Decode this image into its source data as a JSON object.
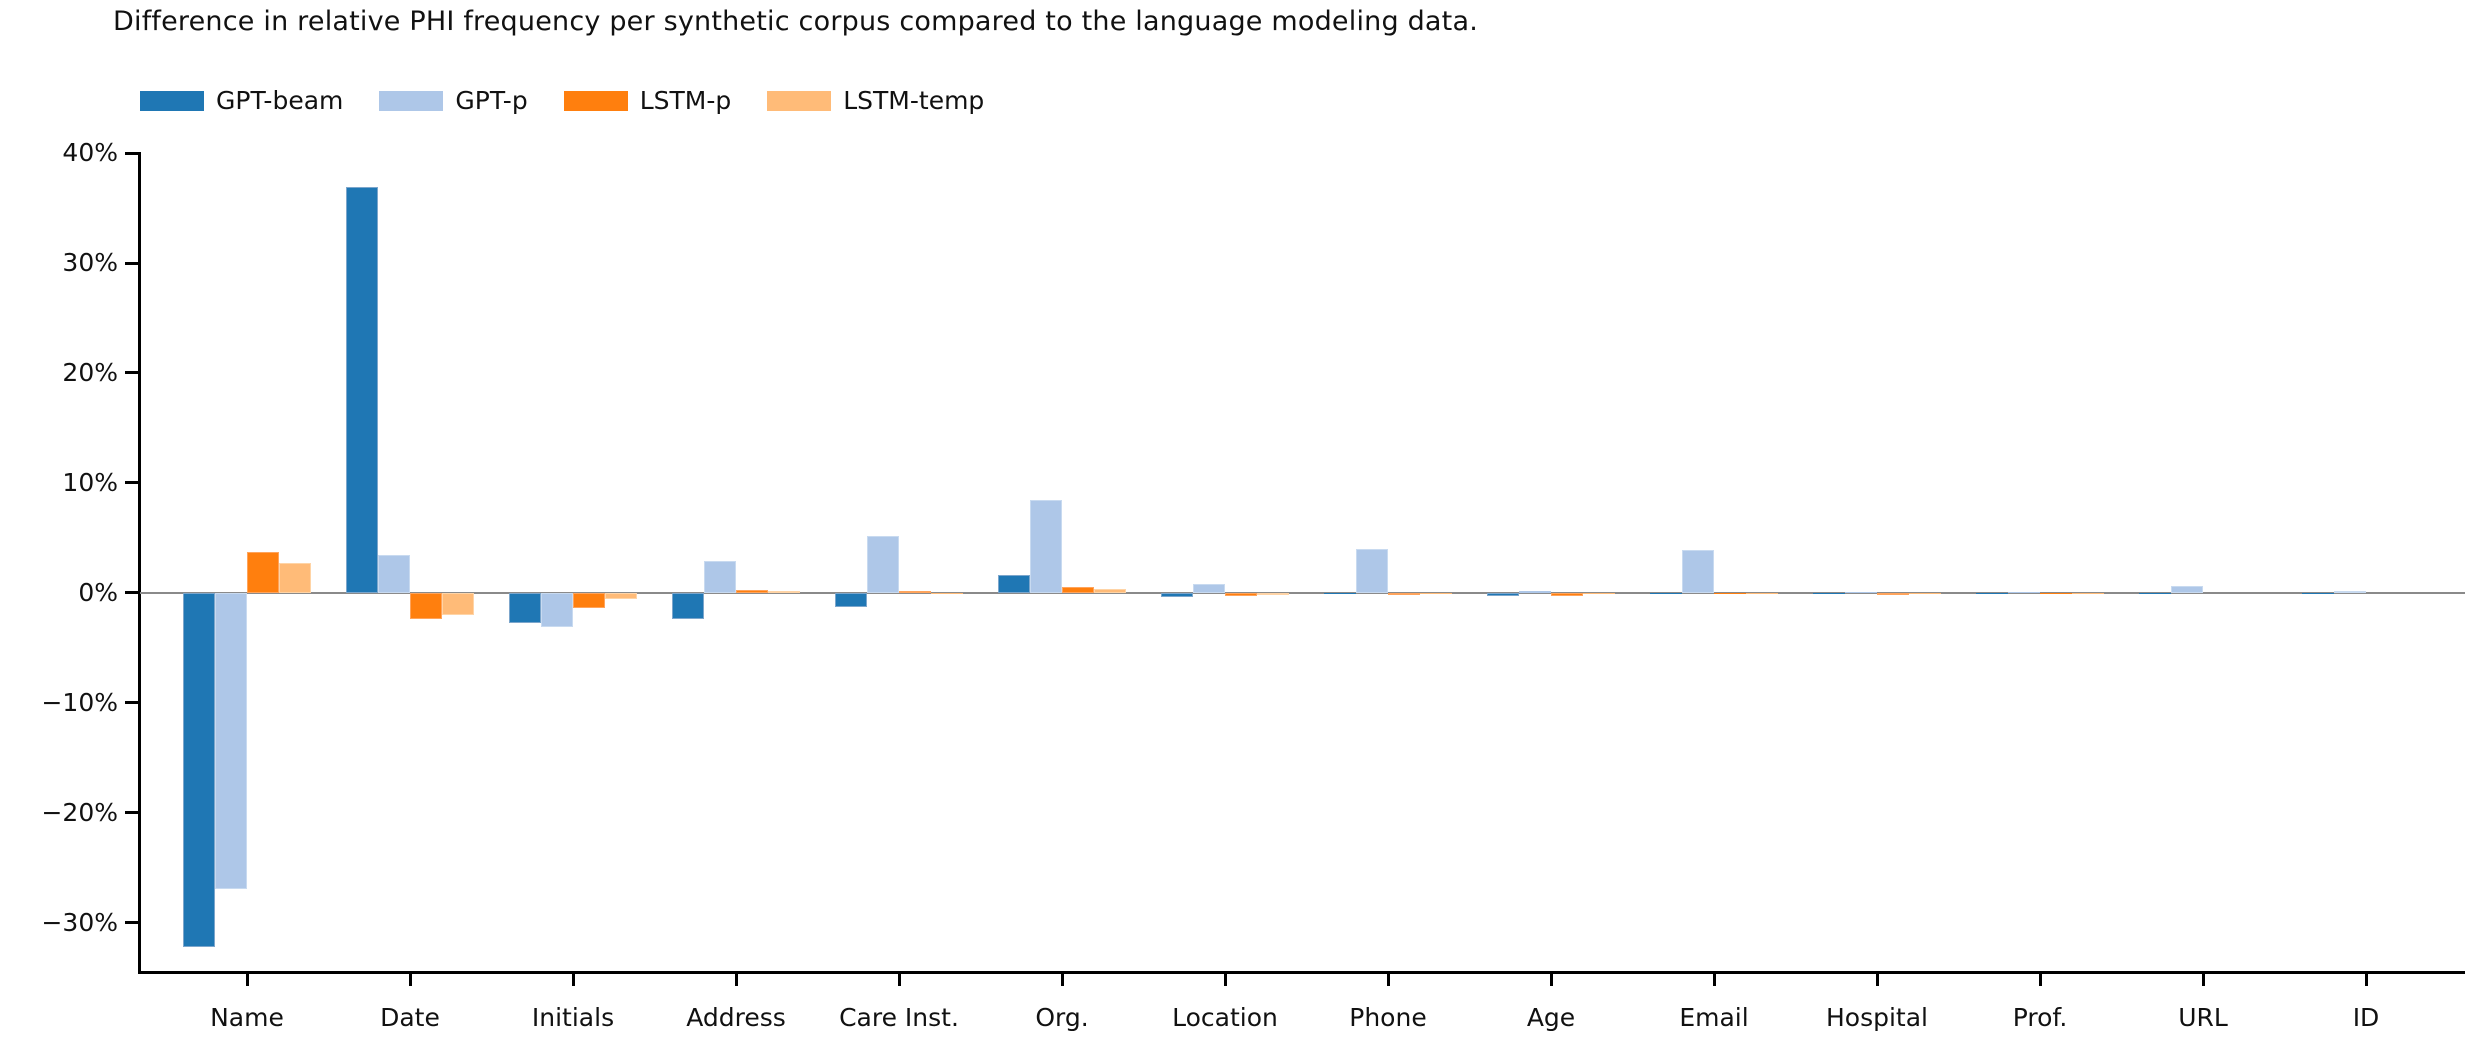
{
  "chart_data": {
    "type": "bar",
    "title": "Difference in relative PHI frequency per synthetic corpus compared to the language modeling data.",
    "categories": [
      "Name",
      "Date",
      "Initials",
      "Address",
      "Care Inst.",
      "Org.",
      "Location",
      "Phone",
      "Age",
      "Email",
      "Hospital",
      "Prof.",
      "URL",
      "ID"
    ],
    "series": [
      {
        "name": "GPT-beam",
        "color": "#1f77b4",
        "edge_color": "#7ca6cc",
        "values": [
          -32.2,
          36.9,
          -2.7,
          -2.4,
          -1.3,
          1.6,
          -0.4,
          -0.1,
          -0.3,
          -0.1,
          -0.1,
          -0.05,
          -0.05,
          -0.05
        ]
      },
      {
        "name": "GPT-p",
        "color": "#aec7e8",
        "edge_color": "#c8daf0",
        "values": [
          -26.9,
          3.4,
          -3.1,
          2.9,
          5.2,
          8.4,
          0.8,
          4.0,
          0.15,
          3.9,
          0.1,
          0.05,
          0.6,
          0.2
        ]
      },
      {
        "name": "LSTM-p",
        "color": "#ff7f0e",
        "edge_color": "#ffa45c",
        "values": [
          3.7,
          -2.4,
          -1.4,
          0.3,
          0.2,
          0.5,
          -0.25,
          -0.2,
          -0.25,
          -0.15,
          -0.2,
          -0.1,
          0.0,
          0.0
        ]
      },
      {
        "name": "LSTM-temp",
        "color": "#ffbb78",
        "edge_color": "#ffd4a6",
        "values": [
          2.7,
          -2.0,
          -0.6,
          0.2,
          -0.1,
          0.35,
          -0.2,
          -0.15,
          -0.15,
          -0.1,
          -0.1,
          -0.05,
          0.0,
          0.0
        ]
      }
    ],
    "y_axis": {
      "unit": "%",
      "lim": [
        -34.4,
        40.1
      ],
      "ticks": [
        {
          "value": 40,
          "label": "40%"
        },
        {
          "value": 30,
          "label": "30%"
        },
        {
          "value": 20,
          "label": "20%"
        },
        {
          "value": 10,
          "label": "10%"
        },
        {
          "value": 0,
          "label": "0%"
        },
        {
          "value": -10,
          "label": "−10%"
        },
        {
          "value": -20,
          "label": "−20%"
        },
        {
          "value": -30,
          "label": "−30%"
        }
      ]
    },
    "legend_position": "top-left",
    "grid": false,
    "zero_line_color": "#8a8a8a",
    "axis_color": "#000000",
    "text_color": "#111111",
    "background_color": "#ffffff"
  }
}
